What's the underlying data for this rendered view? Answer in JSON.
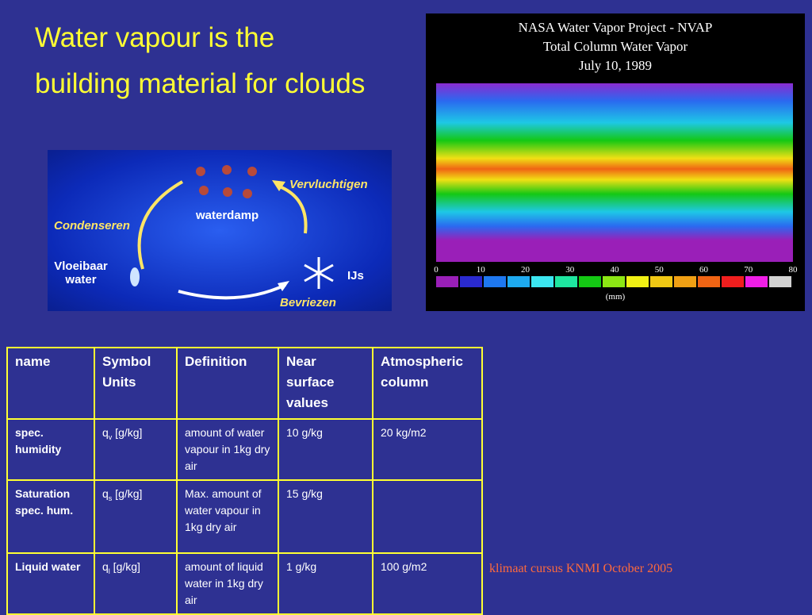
{
  "title": {
    "line1": "Water vapour is the",
    "line2": "building material for clouds"
  },
  "diagram": {
    "evaporate": "Vervluchtigen",
    "vapour": "waterdamp",
    "condense": "Condenseren",
    "liquid": "Vloeibaar water",
    "ice": "IJs",
    "freeze": "Bevriezen"
  },
  "map": {
    "title1": "NASA Water Vapor Project - NVAP",
    "title2": "Total Column Water Vapor",
    "title3": "July 10, 1989",
    "colorbar": {
      "ticks": [
        0,
        10,
        20,
        30,
        40,
        50,
        60,
        70,
        80
      ],
      "unit": "(mm)",
      "colors": [
        "#9a1fb8",
        "#2a2ad0",
        "#1e78f0",
        "#1eaaf0",
        "#3ce6f0",
        "#1ee6a0",
        "#14c814",
        "#8ce614",
        "#f0f014",
        "#f0c814",
        "#f0a014",
        "#f06414",
        "#f01e1e",
        "#f01ee6",
        "#d2d2d2"
      ]
    }
  },
  "table": {
    "header": [
      "name",
      "Symbol Units",
      "Definition",
      "Near surface values",
      "Atmospheric column"
    ],
    "rows": [
      [
        "spec. humidity",
        [
          "q",
          "v",
          " [g/kg]"
        ],
        "amount of water vapour in 1kg dry air",
        "10 g/kg",
        "20 kg/m2"
      ],
      [
        "Saturation spec. hum.",
        [
          "q",
          "s",
          " [g/kg]"
        ],
        "Max. amount of water vapour in 1kg dry air",
        "15 g/kg",
        ""
      ],
      [
        "Liquid water",
        [
          "q",
          "l",
          " [g/kg]"
        ],
        "amount of liquid water in 1kg dry air",
        "1 g/kg",
        "100 g/m2"
      ]
    ]
  },
  "footer": "klimaat cursus KNMI  October 2005"
}
